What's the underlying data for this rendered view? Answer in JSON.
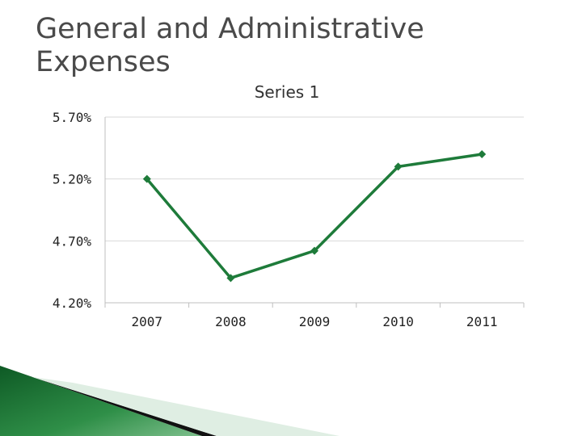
{
  "slide": {
    "title": "General and Administrative Expenses"
  },
  "colors": {
    "series": "#1e7b3a",
    "grid": "#d9d9d9",
    "axis": "#bfbfbf",
    "accent_dark": "#0b3d1a",
    "accent_light": "#dfeee3"
  },
  "chart_data": {
    "type": "line",
    "title": "Series 1",
    "categories": [
      "2007",
      "2008",
      "2009",
      "2010",
      "2011"
    ],
    "series": [
      {
        "values": [
          0.052,
          0.044,
          0.0462,
          0.053,
          0.054
        ]
      }
    ],
    "yticks": [
      "5.70%",
      "5.20%",
      "4.70%",
      "4.20%"
    ],
    "ylim": [
      0.042,
      0.057
    ],
    "grid": true,
    "legend": "none"
  }
}
